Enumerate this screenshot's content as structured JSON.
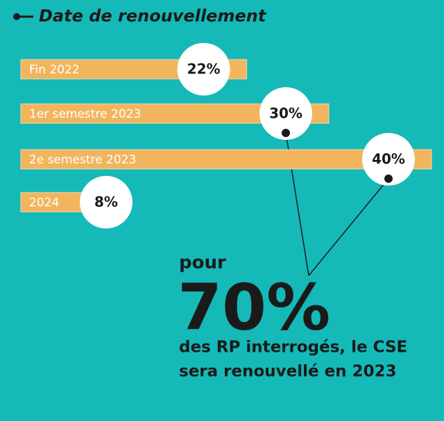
{
  "chart_data": {
    "type": "bar",
    "title": "Date de renouvellement",
    "categories": [
      "Fin 2022",
      "1er semestre 2023",
      "2e semestre 2023",
      "2024"
    ],
    "values": [
      22,
      30,
      40,
      8
    ],
    "value_labels": [
      "22%",
      "30%",
      "40%",
      "8%"
    ],
    "color": "#f2b55e",
    "annotations": [
      "pour",
      "70%",
      "des RP interrogés, le CSE",
      "sera renouvellé en 2023"
    ]
  }
}
